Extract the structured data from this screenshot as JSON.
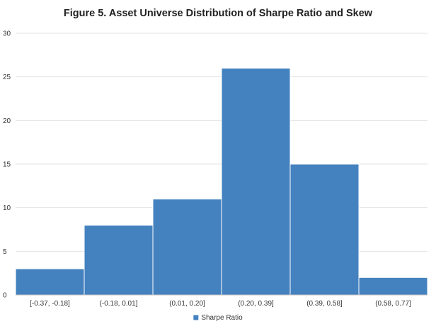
{
  "chart_data": {
    "type": "bar",
    "title": "Figure 5. Asset Universe Distribution of Sharpe Ratio and Skew",
    "categories": [
      "[-0.37, -0.18]",
      "(-0.18, 0.01]",
      "(0.01, 0.20]",
      "(0.20, 0.39]",
      "(0.39, 0.58]",
      "(0.58, 0.77]"
    ],
    "series": [
      {
        "name": "Sharpe Ratio",
        "values": [
          3,
          8,
          11,
          26,
          15,
          2
        ],
        "color": "#4482bf"
      }
    ],
    "xlabel": "",
    "ylabel": "",
    "ylim": [
      0,
      30
    ],
    "yticks": [
      "0",
      "5",
      "10",
      "15",
      "20",
      "25",
      "30"
    ],
    "grid": true,
    "legend": "bottom-center"
  }
}
